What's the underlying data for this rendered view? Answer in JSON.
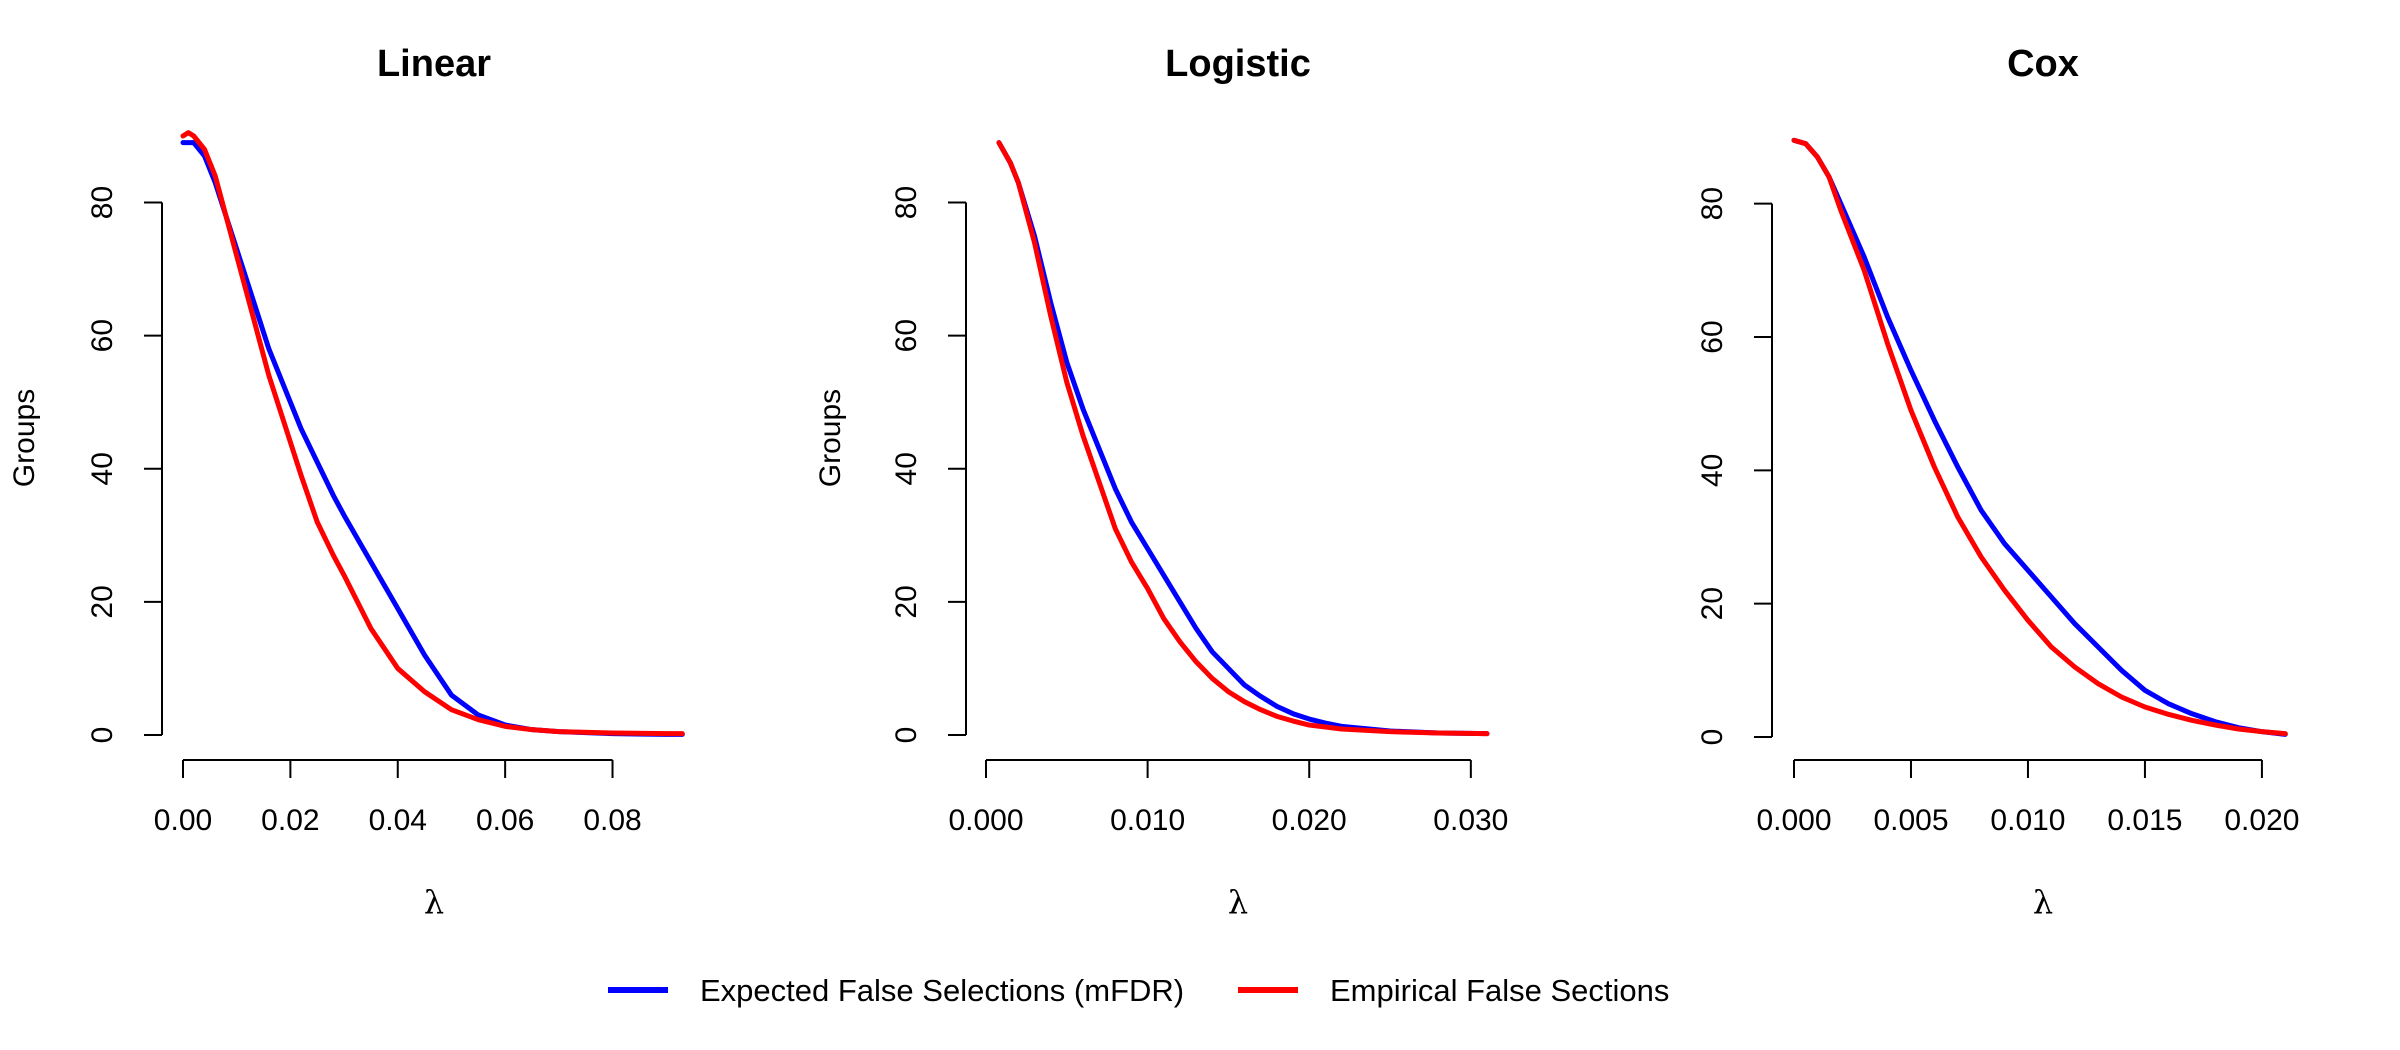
{
  "colors": {
    "expected": "#0000FF",
    "empirical": "#FF0000",
    "axis": "#000000"
  },
  "legend": {
    "items": [
      {
        "label": "Expected False Selections (mFDR)",
        "color": "#0000FF"
      },
      {
        "label": "Empirical False Sections",
        "color": "#FF0000"
      }
    ],
    "placement": "bottom-center"
  },
  "chart_data": [
    {
      "type": "line",
      "title": "Linear",
      "xlabel": "λ",
      "ylabel": "Groups",
      "xlim": [
        0.0,
        0.0935
      ],
      "ylim": [
        0,
        90
      ],
      "xticks": [
        "0.00",
        "0.02",
        "0.04",
        "0.06",
        "0.08"
      ],
      "xtick_values": [
        0.0,
        0.02,
        0.04,
        0.06,
        0.08
      ],
      "yticks": [
        "0",
        "20",
        "40",
        "60",
        "80"
      ],
      "ytick_values": [
        0,
        20,
        40,
        60,
        80
      ],
      "grid": false,
      "series": [
        {
          "name": "Expected False Selections (mFDR)",
          "color": "#0000FF",
          "x": [
            0.0,
            0.002,
            0.004,
            0.006,
            0.008,
            0.01,
            0.012,
            0.014,
            0.016,
            0.018,
            0.02,
            0.022,
            0.025,
            0.028,
            0.03,
            0.035,
            0.04,
            0.045,
            0.05,
            0.055,
            0.06,
            0.065,
            0.07,
            0.08,
            0.09,
            0.093
          ],
          "y": [
            89,
            89,
            87,
            83,
            78,
            73,
            68,
            63,
            58,
            54,
            50,
            46,
            41,
            36,
            33,
            26,
            19,
            12,
            6,
            3,
            1.5,
            0.8,
            0.5,
            0.2,
            0.1,
            0.1
          ]
        },
        {
          "name": "Empirical False Sections",
          "color": "#FF0000",
          "x": [
            0.0,
            0.001,
            0.002,
            0.004,
            0.006,
            0.008,
            0.01,
            0.012,
            0.014,
            0.016,
            0.018,
            0.02,
            0.022,
            0.025,
            0.028,
            0.03,
            0.035,
            0.04,
            0.045,
            0.05,
            0.055,
            0.06,
            0.065,
            0.07,
            0.08,
            0.09,
            0.093
          ],
          "y": [
            90,
            90.5,
            90,
            88,
            84,
            78,
            72,
            66,
            60,
            54,
            49,
            44,
            39,
            32,
            27,
            24,
            16,
            10,
            6.5,
            3.8,
            2.3,
            1.3,
            0.8,
            0.5,
            0.3,
            0.2,
            0.2
          ]
        }
      ]
    },
    {
      "type": "line",
      "title": "Logistic",
      "xlabel": "λ",
      "ylabel": "Groups",
      "xlim": [
        0.0,
        0.031
      ],
      "ylim": [
        0,
        90
      ],
      "xticks": [
        "0.000",
        "0.010",
        "0.020",
        "0.030"
      ],
      "xtick_values": [
        0.0,
        0.01,
        0.02,
        0.03
      ],
      "yticks": [
        "0",
        "20",
        "40",
        "60",
        "80"
      ],
      "ytick_values": [
        0,
        20,
        40,
        60,
        80
      ],
      "grid": false,
      "series": [
        {
          "name": "Expected False Selections (mFDR)",
          "color": "#0000FF",
          "x": [
            0.0008,
            0.0015,
            0.002,
            0.003,
            0.004,
            0.005,
            0.006,
            0.007,
            0.008,
            0.009,
            0.01,
            0.011,
            0.012,
            0.013,
            0.014,
            0.015,
            0.016,
            0.017,
            0.018,
            0.019,
            0.02,
            0.021,
            0.022,
            0.025,
            0.028,
            0.031
          ],
          "y": [
            89,
            86,
            83,
            75,
            65,
            56,
            49,
            43,
            37,
            32,
            28,
            24,
            20,
            16,
            12.5,
            10,
            7.5,
            5.8,
            4.3,
            3.2,
            2.4,
            1.8,
            1.3,
            0.6,
            0.3,
            0.2
          ]
        },
        {
          "name": "Empirical False Sections",
          "color": "#FF0000",
          "x": [
            0.0008,
            0.0015,
            0.002,
            0.003,
            0.004,
            0.005,
            0.006,
            0.007,
            0.008,
            0.009,
            0.01,
            0.011,
            0.012,
            0.013,
            0.014,
            0.015,
            0.016,
            0.017,
            0.018,
            0.019,
            0.02,
            0.022,
            0.025,
            0.028,
            0.031
          ],
          "y": [
            89,
            86,
            83,
            74,
            63,
            53,
            45,
            38,
            31,
            26,
            22,
            17.5,
            14,
            11,
            8.5,
            6.5,
            5,
            3.8,
            2.8,
            2.1,
            1.5,
            0.9,
            0.5,
            0.3,
            0.2
          ]
        }
      ]
    },
    {
      "type": "line",
      "title": "Cox",
      "xlabel": "λ",
      "ylabel": "",
      "xlim": [
        0.0,
        0.0212
      ],
      "ylim": [
        0,
        90
      ],
      "xticks": [
        "0.000",
        "0.005",
        "0.010",
        "0.015",
        "0.020"
      ],
      "xtick_values": [
        0.0,
        0.005,
        0.01,
        0.015,
        0.02
      ],
      "yticks": [
        "0",
        "20",
        "40",
        "60",
        "80"
      ],
      "ytick_values": [
        0,
        20,
        40,
        60,
        80
      ],
      "grid": false,
      "series": [
        {
          "name": "Expected False Selections (mFDR)",
          "color": "#0000FF",
          "x": [
            0.0,
            0.0005,
            0.001,
            0.0015,
            0.002,
            0.003,
            0.004,
            0.005,
            0.006,
            0.007,
            0.008,
            0.009,
            0.01,
            0.011,
            0.012,
            0.013,
            0.014,
            0.015,
            0.016,
            0.017,
            0.018,
            0.019,
            0.02,
            0.021
          ],
          "y": [
            89.5,
            89,
            87,
            84,
            80,
            72,
            63,
            55,
            47.5,
            40.5,
            34,
            29,
            25,
            21,
            17,
            13.5,
            10,
            7,
            5,
            3.5,
            2.3,
            1.4,
            0.8,
            0.4
          ]
        },
        {
          "name": "Empirical False Sections",
          "color": "#FF0000",
          "x": [
            0.0,
            0.0005,
            0.001,
            0.0015,
            0.002,
            0.003,
            0.004,
            0.005,
            0.006,
            0.007,
            0.008,
            0.009,
            0.01,
            0.011,
            0.012,
            0.013,
            0.014,
            0.015,
            0.016,
            0.017,
            0.018,
            0.019,
            0.02,
            0.021
          ],
          "y": [
            89.5,
            89,
            87,
            84,
            79,
            70,
            59,
            49,
            40.5,
            33,
            27,
            22,
            17.5,
            13.5,
            10.5,
            8,
            6,
            4.5,
            3.4,
            2.5,
            1.8,
            1.2,
            0.8,
            0.5
          ]
        }
      ]
    }
  ]
}
